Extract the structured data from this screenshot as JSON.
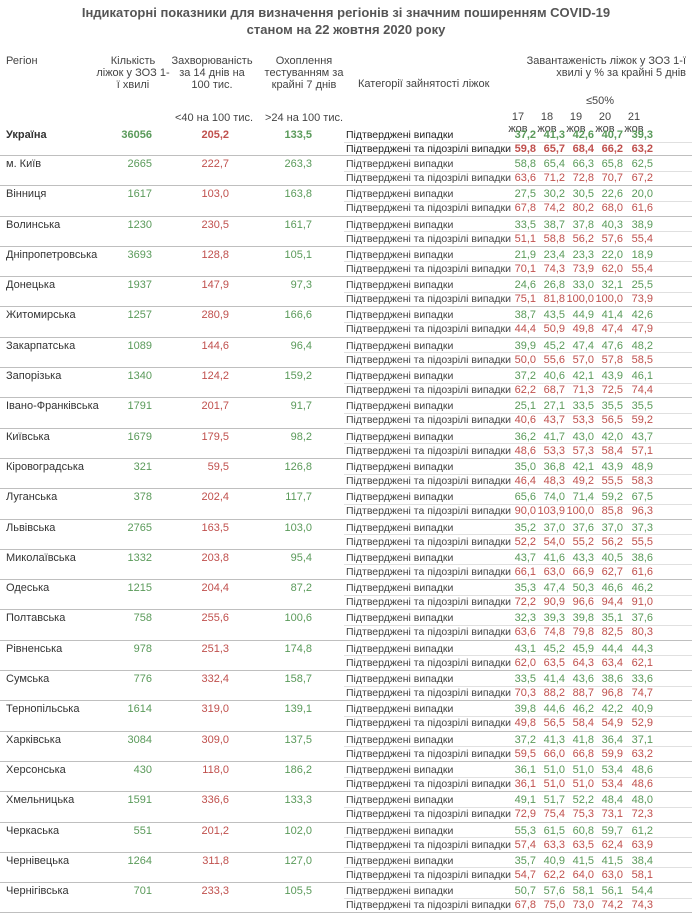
{
  "title_line1": "Індикаторні показники для визначення регіонів зі значним поширенням COVID-19",
  "title_line2": "станом на 22 жовтня 2020 року",
  "headers": {
    "region": "Регіон",
    "beds": "Кількість ліжок у ЗОЗ 1-ї хвилі",
    "incidence": "Захворюваність за 14 днів на 100 тис.",
    "incidence_threshold": "<40 на 100 тис.",
    "testing": "Охоплення тестуванням за крайні 7 днів",
    "testing_threshold": ">24 на 100 тис.",
    "category": "Категорії зайнятості ліжок",
    "load": "Завантаженість ліжок у ЗОЗ 1-ї хвилі у % за крайні 5 днів",
    "load_threshold": "≤50%",
    "dates": [
      "17 жов",
      "18 жов",
      "19 жов",
      "20 жов",
      "21 жов"
    ]
  },
  "categories": [
    "Підтверджені випадки",
    "Підтверджені та підозрілі випадки"
  ],
  "colors": {
    "green": "#5a9a5a",
    "red": "#c0504d"
  },
  "rows": [
    {
      "region": "Україна",
      "beds": "36056",
      "incidence": "205,2",
      "testing": "133,5",
      "confirmed": [
        "37,2",
        "41,3",
        "42,6",
        "40,7",
        "39,3"
      ],
      "suspected": [
        "59,8",
        "65,7",
        "68,4",
        "66,2",
        "63,2"
      ]
    },
    {
      "region": "м. Київ",
      "beds": "2665",
      "incidence": "222,7",
      "testing": "263,3",
      "confirmed": [
        "58,8",
        "65,4",
        "66,3",
        "65,8",
        "62,5"
      ],
      "suspected": [
        "63,6",
        "71,2",
        "72,8",
        "70,7",
        "67,2"
      ]
    },
    {
      "region": "Вінниця",
      "beds": "1617",
      "incidence": "103,0",
      "testing": "163,8",
      "confirmed": [
        "27,5",
        "30,2",
        "30,5",
        "22,6",
        "20,0"
      ],
      "suspected": [
        "67,8",
        "74,2",
        "80,2",
        "68,0",
        "61,6"
      ]
    },
    {
      "region": "Волинська",
      "beds": "1230",
      "incidence": "230,5",
      "testing": "161,7",
      "confirmed": [
        "33,5",
        "38,7",
        "37,8",
        "40,3",
        "38,9"
      ],
      "suspected": [
        "51,1",
        "58,8",
        "56,2",
        "57,6",
        "55,4"
      ]
    },
    {
      "region": "Дніпропетровська",
      "beds": "3693",
      "incidence": "128,8",
      "testing": "105,1",
      "confirmed": [
        "21,9",
        "23,4",
        "23,3",
        "22,0",
        "18,9"
      ],
      "suspected": [
        "70,1",
        "74,3",
        "73,9",
        "62,0",
        "55,4"
      ]
    },
    {
      "region": "Донецька",
      "beds": "1937",
      "incidence": "147,9",
      "testing": "97,3",
      "confirmed": [
        "24,6",
        "26,8",
        "33,0",
        "32,1",
        "25,5"
      ],
      "suspected": [
        "75,1",
        "81,8",
        "100,0",
        "100,0",
        "73,9"
      ]
    },
    {
      "region": "Житомирська",
      "beds": "1257",
      "incidence": "280,9",
      "testing": "166,6",
      "confirmed": [
        "38,7",
        "43,5",
        "44,9",
        "41,4",
        "42,6"
      ],
      "suspected": [
        "44,4",
        "50,9",
        "49,8",
        "47,4",
        "47,9"
      ]
    },
    {
      "region": "Закарпатська",
      "beds": "1089",
      "incidence": "144,6",
      "testing": "96,4",
      "confirmed": [
        "39,9",
        "45,2",
        "47,4",
        "47,6",
        "48,2"
      ],
      "suspected": [
        "50,0",
        "55,6",
        "57,0",
        "57,8",
        "58,5"
      ]
    },
    {
      "region": "Запорізька",
      "beds": "1340",
      "incidence": "124,2",
      "testing": "159,2",
      "confirmed": [
        "37,2",
        "40,6",
        "42,1",
        "43,9",
        "46,1"
      ],
      "suspected": [
        "62,2",
        "68,7",
        "71,3",
        "72,5",
        "74,4"
      ]
    },
    {
      "region": "Івано-Франківська",
      "beds": "1791",
      "incidence": "201,7",
      "testing": "91,7",
      "confirmed": [
        "25,1",
        "27,1",
        "33,5",
        "35,5",
        "35,5"
      ],
      "suspected": [
        "40,6",
        "43,7",
        "53,3",
        "56,5",
        "59,2"
      ]
    },
    {
      "region": "Київська",
      "beds": "1679",
      "incidence": "179,5",
      "testing": "98,2",
      "confirmed": [
        "36,2",
        "41,7",
        "43,0",
        "42,0",
        "43,7"
      ],
      "suspected": [
        "48,6",
        "53,3",
        "57,3",
        "58,4",
        "57,1"
      ]
    },
    {
      "region": "Кіровоградська",
      "beds": "321",
      "incidence": "59,5",
      "testing": "126,8",
      "confirmed": [
        "35,0",
        "36,8",
        "42,1",
        "43,9",
        "48,9"
      ],
      "suspected": [
        "46,4",
        "48,3",
        "49,2",
        "55,5",
        "58,3"
      ]
    },
    {
      "region": "Луганська",
      "beds": "378",
      "incidence": "202,4",
      "testing": "117,7",
      "confirmed": [
        "65,6",
        "74,0",
        "71,4",
        "59,2",
        "67,5"
      ],
      "suspected": [
        "90,0",
        "103,9",
        "100,0",
        "85,8",
        "96,3"
      ]
    },
    {
      "region": "Львівська",
      "beds": "2765",
      "incidence": "163,5",
      "testing": "103,0",
      "confirmed": [
        "35,2",
        "37,0",
        "37,6",
        "37,0",
        "37,3"
      ],
      "suspected": [
        "52,2",
        "54,0",
        "55,2",
        "56,2",
        "55,5"
      ]
    },
    {
      "region": "Миколаївська",
      "beds": "1332",
      "incidence": "203,8",
      "testing": "95,4",
      "confirmed": [
        "43,7",
        "41,6",
        "43,3",
        "40,5",
        "38,6"
      ],
      "suspected": [
        "66,1",
        "63,0",
        "66,9",
        "62,7",
        "61,6"
      ]
    },
    {
      "region": "Одеська",
      "beds": "1215",
      "incidence": "204,4",
      "testing": "87,2",
      "confirmed": [
        "35,3",
        "47,4",
        "50,3",
        "46,6",
        "46,2"
      ],
      "suspected": [
        "72,2",
        "90,9",
        "96,6",
        "94,4",
        "91,0"
      ]
    },
    {
      "region": "Полтавська",
      "beds": "758",
      "incidence": "255,6",
      "testing": "100,6",
      "confirmed": [
        "32,3",
        "39,3",
        "39,8",
        "35,1",
        "37,6"
      ],
      "suspected": [
        "63,6",
        "74,8",
        "79,8",
        "82,5",
        "80,3"
      ]
    },
    {
      "region": "Рівненська",
      "beds": "978",
      "incidence": "251,3",
      "testing": "174,8",
      "confirmed": [
        "43,1",
        "45,2",
        "45,9",
        "44,4",
        "44,3"
      ],
      "suspected": [
        "62,0",
        "63,5",
        "64,3",
        "63,4",
        "62,1"
      ]
    },
    {
      "region": "Сумська",
      "beds": "776",
      "incidence": "332,4",
      "testing": "158,7",
      "confirmed": [
        "33,5",
        "41,4",
        "43,6",
        "38,6",
        "33,6"
      ],
      "suspected": [
        "70,3",
        "88,2",
        "88,7",
        "96,8",
        "74,7"
      ]
    },
    {
      "region": "Тернопільська",
      "beds": "1614",
      "incidence": "319,0",
      "testing": "139,1",
      "confirmed": [
        "39,8",
        "44,6",
        "46,2",
        "42,2",
        "40,9"
      ],
      "suspected": [
        "49,8",
        "56,5",
        "58,4",
        "54,9",
        "52,9"
      ]
    },
    {
      "region": "Харківська",
      "beds": "3084",
      "incidence": "309,0",
      "testing": "137,5",
      "confirmed": [
        "37,2",
        "41,3",
        "41,8",
        "36,4",
        "37,1"
      ],
      "suspected": [
        "59,5",
        "66,0",
        "66,8",
        "59,9",
        "63,2"
      ]
    },
    {
      "region": "Херсонська",
      "beds": "430",
      "incidence": "118,0",
      "testing": "186,2",
      "confirmed": [
        "36,1",
        "51,0",
        "51,0",
        "53,4",
        "48,6"
      ],
      "suspected": [
        "36,1",
        "51,0",
        "51,0",
        "53,4",
        "48,6"
      ]
    },
    {
      "region": "Хмельницька",
      "beds": "1591",
      "incidence": "336,6",
      "testing": "133,3",
      "confirmed": [
        "49,1",
        "51,7",
        "52,2",
        "48,4",
        "48,0"
      ],
      "suspected": [
        "72,9",
        "75,4",
        "75,3",
        "73,1",
        "72,3"
      ]
    },
    {
      "region": "Черкаська",
      "beds": "551",
      "incidence": "201,2",
      "testing": "102,0",
      "confirmed": [
        "55,3",
        "61,5",
        "60,8",
        "59,7",
        "61,2"
      ],
      "suspected": [
        "57,4",
        "63,3",
        "63,5",
        "62,4",
        "63,9"
      ]
    },
    {
      "region": "Чернівецька",
      "beds": "1264",
      "incidence": "311,8",
      "testing": "127,0",
      "confirmed": [
        "35,7",
        "40,9",
        "41,5",
        "41,5",
        "38,4"
      ],
      "suspected": [
        "54,7",
        "62,2",
        "64,0",
        "63,0",
        "58,1"
      ]
    },
    {
      "region": "Чернігівська",
      "beds": "701",
      "incidence": "233,3",
      "testing": "105,5",
      "confirmed": [
        "50,7",
        "57,6",
        "58,1",
        "56,1",
        "54,4"
      ],
      "suspected": [
        "67,8",
        "75,0",
        "73,0",
        "74,2",
        "74,3"
      ]
    }
  ]
}
